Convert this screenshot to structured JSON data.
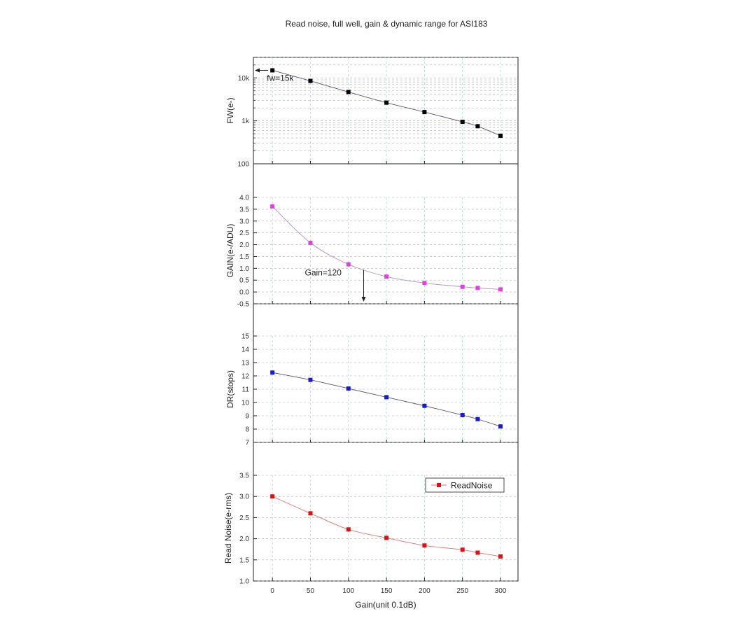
{
  "title": "Read noise, full well, gain & dynamic range for ASI183",
  "chart_data": [
    {
      "type": "line",
      "ylabel": "FW(e-)",
      "yscale": "log",
      "ylim": [
        100,
        30000
      ],
      "yticks": [
        {
          "v": 100,
          "label": "100"
        },
        {
          "v": 1000,
          "label": "1k"
        },
        {
          "v": 10000,
          "label": "10k"
        }
      ],
      "x": [
        0,
        50,
        100,
        150,
        200,
        250,
        270,
        300
      ],
      "series": [
        {
          "values": [
            15000,
            8500,
            4700,
            2650,
            1600,
            950,
            750,
            450
          ],
          "color": "#000000"
        }
      ],
      "annotation": {
        "text": "fw=15k",
        "arrow": "left",
        "at_x": 0,
        "at_y": 15000
      },
      "grid": true
    },
    {
      "type": "line",
      "ylabel": "GAIN(e-/ADU)",
      "ylim": [
        -0.5,
        4.0
      ],
      "yticks": [
        {
          "v": -0.5,
          "label": "-0.5"
        },
        {
          "v": 0.0,
          "label": "0.0"
        },
        {
          "v": 0.5,
          "label": "0.5"
        },
        {
          "v": 1.0,
          "label": "1.0"
        },
        {
          "v": 1.5,
          "label": "1.5"
        },
        {
          "v": 2.0,
          "label": "2.0"
        },
        {
          "v": 2.5,
          "label": "2.5"
        },
        {
          "v": 3.0,
          "label": "3.0"
        },
        {
          "v": 3.5,
          "label": "3.5"
        },
        {
          "v": 4.0,
          "label": "4.0"
        }
      ],
      "x": [
        0,
        50,
        100,
        150,
        200,
        250,
        270,
        300
      ],
      "series": [
        {
          "values": [
            3.62,
            2.08,
            1.17,
            0.65,
            0.38,
            0.22,
            0.17,
            0.11
          ],
          "color": "#e040e0"
        }
      ],
      "annotation": {
        "text": "Gain=120",
        "arrow": "down",
        "at_x": 120
      },
      "grid": true
    },
    {
      "type": "line",
      "ylabel": "DR(stops)",
      "ylim": [
        7,
        15
      ],
      "yticks": [
        {
          "v": 7,
          "label": "7"
        },
        {
          "v": 8,
          "label": "8"
        },
        {
          "v": 9,
          "label": "9"
        },
        {
          "v": 10,
          "label": "10"
        },
        {
          "v": 11,
          "label": "11"
        },
        {
          "v": 12,
          "label": "12"
        },
        {
          "v": 13,
          "label": "13"
        },
        {
          "v": 14,
          "label": "14"
        },
        {
          "v": 15,
          "label": "15"
        }
      ],
      "x": [
        0,
        50,
        100,
        150,
        200,
        250,
        270,
        300
      ],
      "series": [
        {
          "values": [
            12.25,
            11.7,
            11.05,
            10.4,
            9.75,
            9.05,
            8.75,
            8.2
          ],
          "color": "#1a1acc"
        }
      ],
      "grid": true
    },
    {
      "type": "line",
      "ylabel": "Read Noise(e-rms)",
      "xlabel": "Gain(unit 0.1dB)",
      "ylim": [
        1.0,
        3.5
      ],
      "yticks": [
        {
          "v": 1.0,
          "label": "1.0"
        },
        {
          "v": 1.5,
          "label": "1.5"
        },
        {
          "v": 2.0,
          "label": "2.0"
        },
        {
          "v": 2.5,
          "label": "2.5"
        },
        {
          "v": 3.0,
          "label": "3.0"
        },
        {
          "v": 3.5,
          "label": "3.5"
        }
      ],
      "xticks": [
        {
          "v": 0,
          "label": "0"
        },
        {
          "v": 50,
          "label": "50"
        },
        {
          "v": 100,
          "label": "100"
        },
        {
          "v": 150,
          "label": "150"
        },
        {
          "v": 200,
          "label": "200"
        },
        {
          "v": 250,
          "label": "250"
        },
        {
          "v": 300,
          "label": "300"
        }
      ],
      "x": [
        0,
        50,
        100,
        150,
        200,
        250,
        270,
        300
      ],
      "series": [
        {
          "name": "ReadNoise",
          "values": [
            3.0,
            2.6,
            2.22,
            2.02,
            1.84,
            1.74,
            1.67,
            1.58
          ],
          "color": "#dd1111"
        }
      ],
      "legend": "top-right",
      "grid": true
    }
  ]
}
